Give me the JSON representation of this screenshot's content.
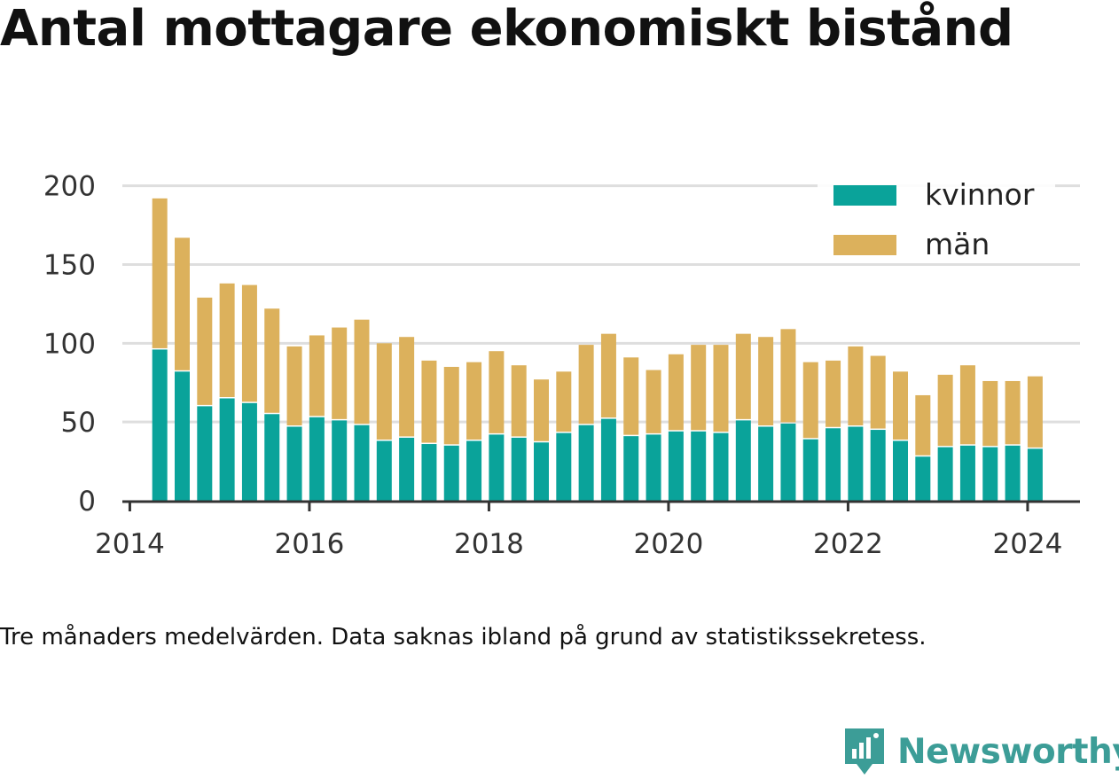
{
  "title": "Antal mottagare ekonomiskt bistånd",
  "note": "Tre månaders medelvärden. Data saknas ibland på grund av statistikssekretess.",
  "brand": {
    "name": "Newsworthy",
    "color": "#3c9d97",
    "logo_icon": "newsworthy-chart-badge-icon"
  },
  "chart_data": {
    "type": "bar",
    "stacked": true,
    "x_type": "date",
    "x": [
      "2014-05",
      "2014-08",
      "2014-11",
      "2015-02",
      "2015-05",
      "2015-08",
      "2015-11",
      "2016-02",
      "2016-05",
      "2016-08",
      "2016-11",
      "2017-02",
      "2017-05",
      "2017-08",
      "2017-11",
      "2018-02",
      "2018-05",
      "2018-08",
      "2018-11",
      "2019-02",
      "2019-05",
      "2019-08",
      "2019-11",
      "2020-02",
      "2020-05",
      "2020-08",
      "2020-11",
      "2021-02",
      "2021-05",
      "2021-08",
      "2021-11",
      "2022-02",
      "2022-05",
      "2022-08",
      "2022-11",
      "2023-02",
      "2023-05",
      "2023-08",
      "2023-11",
      "2024-02"
    ],
    "series": [
      {
        "name": "kvinnor",
        "color": "#0aa39a",
        "values": [
          96,
          82,
          60,
          65,
          62,
          55,
          47,
          53,
          51,
          48,
          38,
          40,
          36,
          35,
          38,
          42,
          40,
          37,
          43,
          48,
          52,
          41,
          42,
          44,
          44,
          43,
          51,
          47,
          49,
          39,
          46,
          47,
          45,
          38,
          28,
          34,
          35,
          34,
          35,
          33
        ]
      },
      {
        "name": "män",
        "color": "#dcb15c",
        "values": [
          96,
          85,
          69,
          73,
          75,
          67,
          51,
          52,
          59,
          67,
          62,
          64,
          53,
          50,
          50,
          53,
          46,
          40,
          39,
          51,
          54,
          50,
          41,
          49,
          55,
          56,
          55,
          57,
          60,
          49,
          43,
          51,
          47,
          44,
          39,
          46,
          51,
          42,
          41,
          46
        ]
      }
    ],
    "x_ticks": [
      "2014",
      "2016",
      "2018",
      "2020",
      "2022",
      "2024"
    ],
    "y_ticks": [
      0,
      50,
      100,
      150,
      200
    ],
    "ylim": [
      0,
      215
    ],
    "xlim": [
      "2013-12",
      "2024-08"
    ],
    "grid": "horizontal",
    "legend_position": "top-right"
  }
}
